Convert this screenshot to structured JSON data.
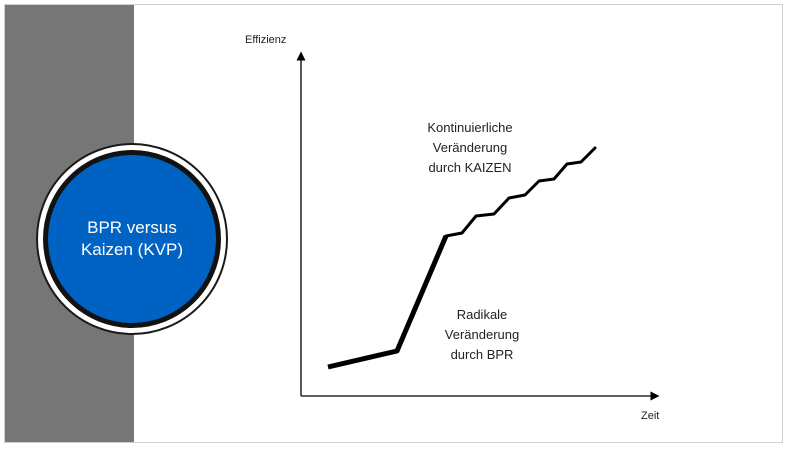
{
  "circle": {
    "line1": "BPR versus",
    "line2": "Kaizen (KVP)"
  },
  "axes": {
    "y_label": "Effizienz",
    "x_label": "Zeit"
  },
  "labels": {
    "kaizen": [
      "Kontinuierliche",
      "Veränderung",
      "durch KAIZEN"
    ],
    "bpr": [
      "Radikale",
      "Veränderung",
      "durch BPR"
    ]
  },
  "colors": {
    "side_bar": "#767676",
    "circle_fill": "#0063c4",
    "circle_ring": "#121212",
    "line": "#000000"
  }
}
